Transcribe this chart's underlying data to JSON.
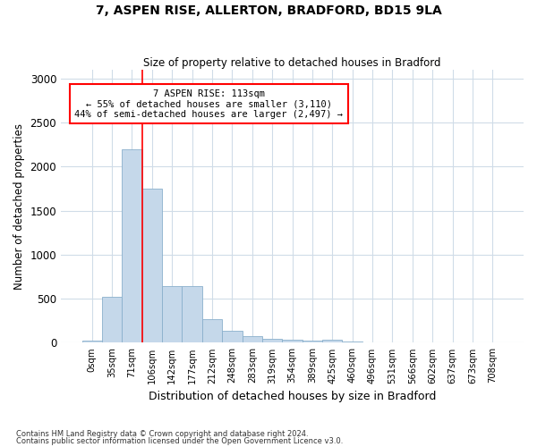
{
  "title": "7, ASPEN RISE, ALLERTON, BRADFORD, BD15 9LA",
  "subtitle": "Size of property relative to detached houses in Bradford",
  "xlabel": "Distribution of detached houses by size in Bradford",
  "ylabel": "Number of detached properties",
  "bin_labels": [
    "0sqm",
    "35sqm",
    "71sqm",
    "106sqm",
    "142sqm",
    "177sqm",
    "212sqm",
    "248sqm",
    "283sqm",
    "319sqm",
    "354sqm",
    "389sqm",
    "425sqm",
    "460sqm",
    "496sqm",
    "531sqm",
    "566sqm",
    "602sqm",
    "637sqm",
    "673sqm",
    "708sqm"
  ],
  "bar_heights": [
    25,
    520,
    2200,
    1750,
    640,
    640,
    270,
    140,
    75,
    40,
    30,
    25,
    35,
    10,
    5,
    0,
    0,
    0,
    0,
    0,
    0
  ],
  "bar_color": "#c5d8ea",
  "bar_edgecolor": "#8ab0cc",
  "vline_x_index": 3,
  "vline_color": "red",
  "annotation_text": "7 ASPEN RISE: 113sqm\n← 55% of detached houses are smaller (3,110)\n44% of semi-detached houses are larger (2,497) →",
  "annotation_box_edgecolor": "red",
  "ylim": [
    0,
    3100
  ],
  "yticks": [
    0,
    500,
    1000,
    1500,
    2000,
    2500,
    3000
  ],
  "footnote1": "Contains HM Land Registry data © Crown copyright and database right 2024.",
  "footnote2": "Contains public sector information licensed under the Open Government Licence v3.0.",
  "background_color": "#ffffff",
  "grid_color": "#d0dce8"
}
